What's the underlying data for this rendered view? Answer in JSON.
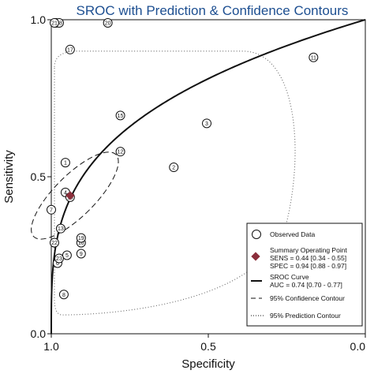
{
  "chart_data": {
    "type": "scatter",
    "title": "SROC with Prediction & Confidence Contours",
    "xlabel": "Specificity",
    "ylabel": "Sensitivity",
    "x_reversed": true,
    "xlim": [
      1.0,
      0.0
    ],
    "ylim": [
      0.0,
      1.0
    ],
    "x_ticks": [
      {
        "value": 1.0,
        "label": "1.0"
      },
      {
        "value": 0.5,
        "label": "0.5"
      },
      {
        "value": 0.0,
        "label": "0.0"
      }
    ],
    "y_ticks": [
      {
        "value": 0.0,
        "label": "0.0"
      },
      {
        "value": 0.5,
        "label": "0.5"
      },
      {
        "value": 1.0,
        "label": "1.0"
      }
    ],
    "studies": [
      {
        "id": "1",
        "spec": 0.955,
        "sens": 0.545
      },
      {
        "id": "2",
        "spec": 0.61,
        "sens": 0.53
      },
      {
        "id": "3",
        "spec": 0.505,
        "sens": 0.67
      },
      {
        "id": "4",
        "spec": 0.955,
        "sens": 0.45
      },
      {
        "id": "5",
        "spec": 0.95,
        "sens": 0.25
      },
      {
        "id": "6",
        "spec": 0.98,
        "sens": 0.225
      },
      {
        "id": "7",
        "spec": 1.0,
        "sens": 0.395
      },
      {
        "id": "8",
        "spec": 0.96,
        "sens": 0.125
      },
      {
        "id": "9",
        "spec": 0.905,
        "sens": 0.255
      },
      {
        "id": "10",
        "spec": 0.905,
        "sens": 0.29
      },
      {
        "id": "11",
        "spec": 0.165,
        "sens": 0.88
      },
      {
        "id": "12",
        "spec": 0.78,
        "sens": 0.58
      },
      {
        "id": "13",
        "spec": 0.97,
        "sens": 0.335
      },
      {
        "id": "14",
        "spec": 0.985,
        "sens": 0.99
      },
      {
        "id": "15",
        "spec": 0.78,
        "sens": 0.695
      },
      {
        "id": "16",
        "spec": 0.94,
        "sens": 0.435
      },
      {
        "id": "17",
        "spec": 0.94,
        "sens": 0.905
      },
      {
        "id": "18",
        "spec": 0.975,
        "sens": 0.99
      },
      {
        "id": "19",
        "spec": 0.905,
        "sens": 0.305
      },
      {
        "id": "20",
        "spec": 0.82,
        "sens": 0.99
      },
      {
        "id": "21",
        "spec": 0.99,
        "sens": 0.99
      },
      {
        "id": "22",
        "spec": 0.99,
        "sens": 0.29
      },
      {
        "id": "23",
        "spec": 0.975,
        "sens": 0.24
      }
    ],
    "summary_point": {
      "spec": 0.94,
      "sens": 0.44,
      "color": "#8b2e3b"
    },
    "sroc_curve_exponent": 0.3,
    "confidence_contour": {
      "center_spec": 0.925,
      "center_sens": 0.44,
      "spec_radius": 0.065,
      "sens_radius": 0.185,
      "rotation_deg": -45
    },
    "prediction_contour": {
      "spec_left": 0.99,
      "spec_right": 0.24,
      "sens_top": 0.9,
      "sens_bottom": 0.06
    },
    "legend": {
      "placement": "bottom-right",
      "observed": "Observed Data",
      "summary_title": "Summary Operating Point",
      "summary_sens": "SENS = 0.44 [0.34 - 0.55]",
      "summary_spec": "SPEC = 0.94 [0.88 - 0.97]",
      "sroc_title": "SROC Curve",
      "sroc_auc": "AUC = 0.74 [0.70 - 0.77]",
      "confidence": "95% Confidence Contour",
      "prediction": "95% Prediction Contour"
    }
  }
}
